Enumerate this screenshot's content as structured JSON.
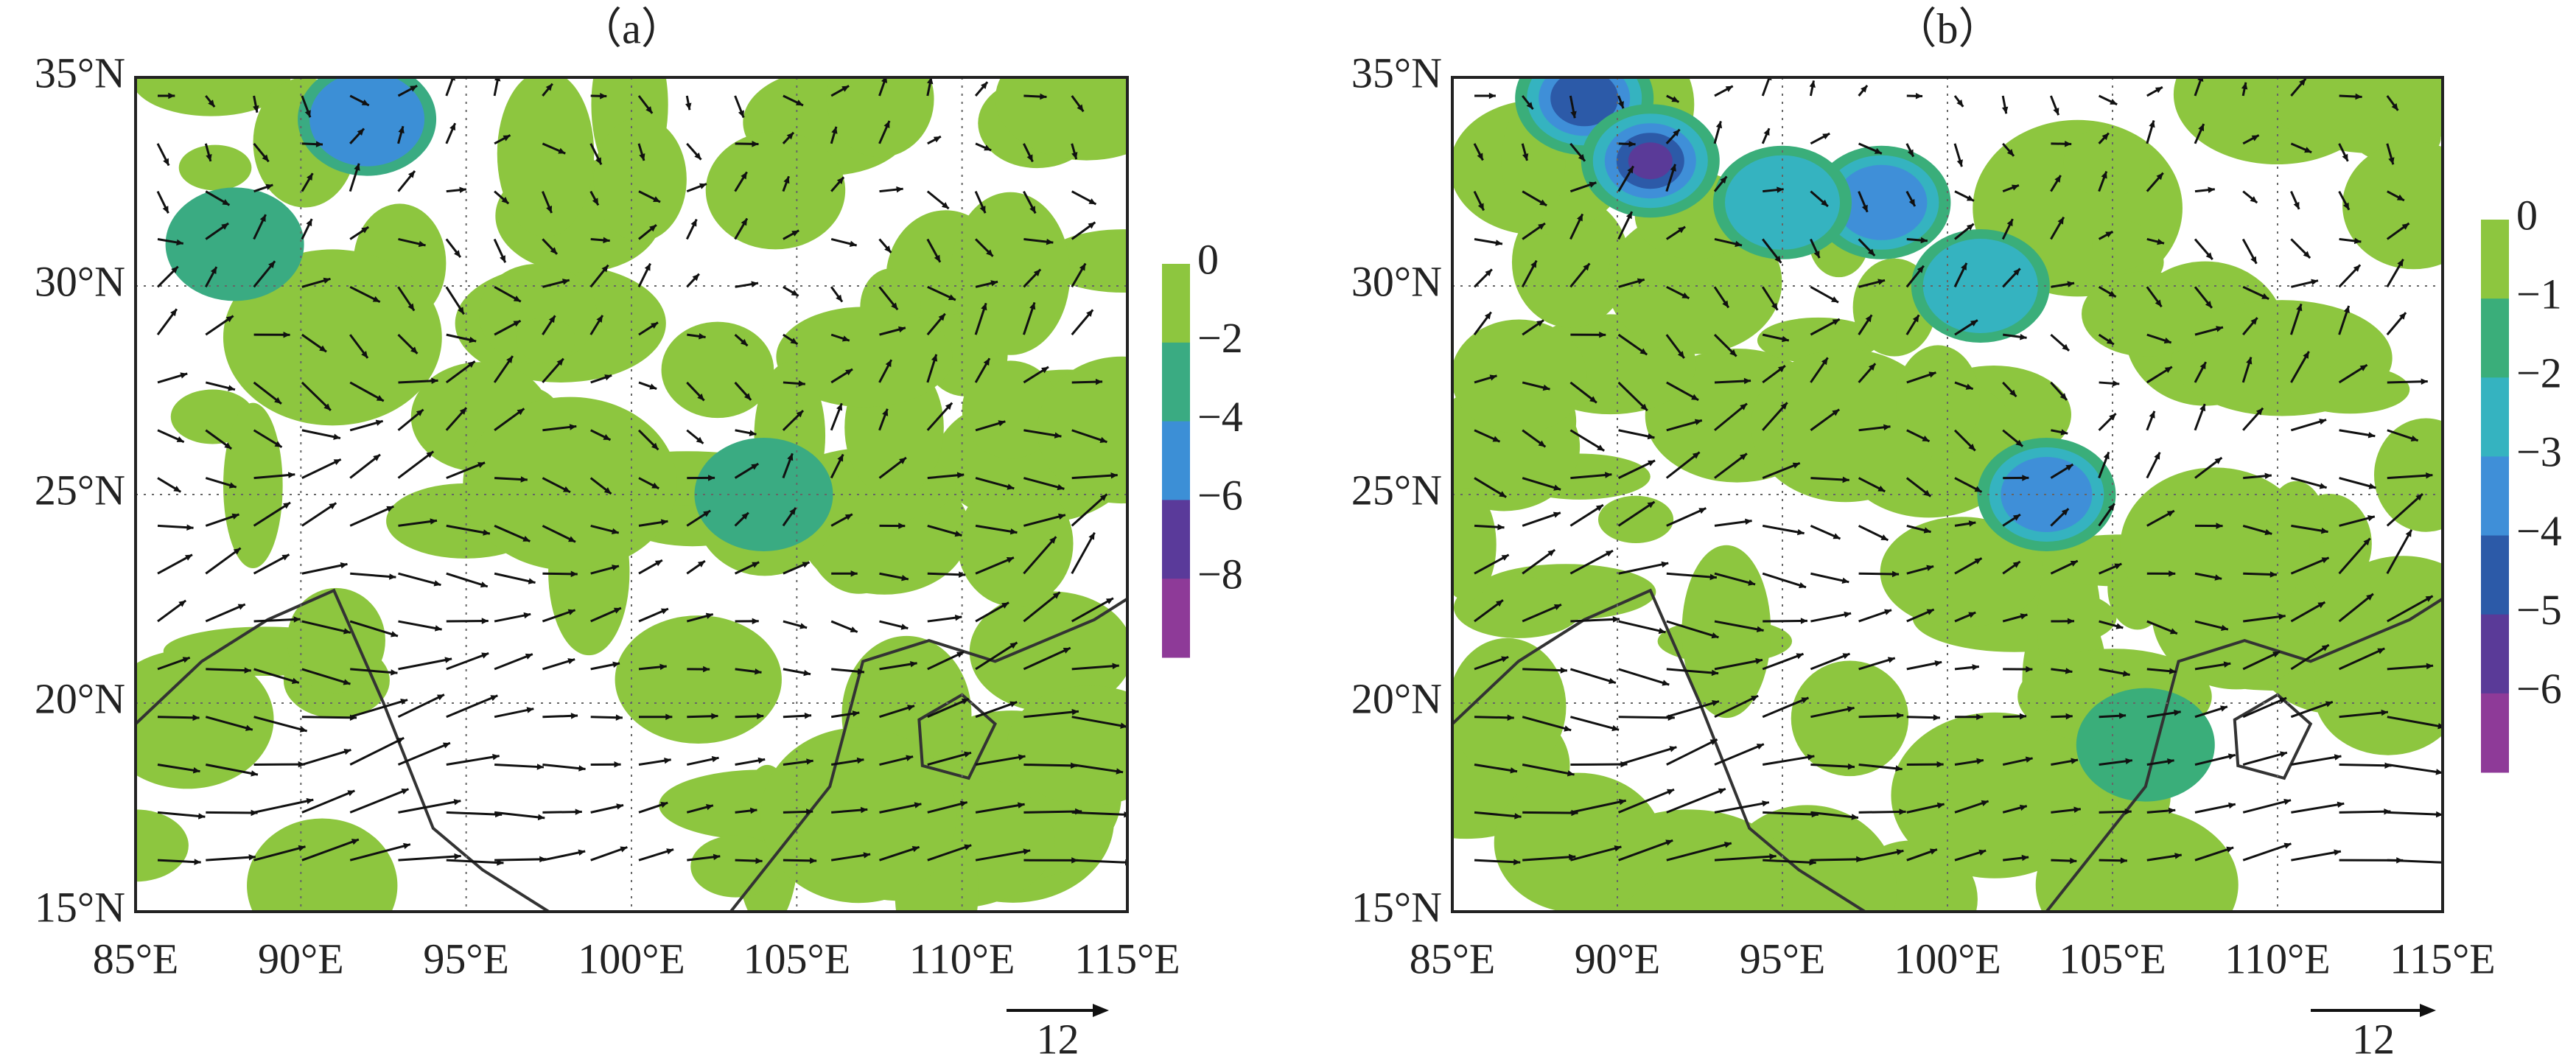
{
  "panels": [
    {
      "title": "（a）",
      "xticks": [
        {
          "value": 85,
          "label": "85°E"
        },
        {
          "value": 90,
          "label": "90°E"
        },
        {
          "value": 95,
          "label": "95°E"
        },
        {
          "value": 100,
          "label": "100°E"
        },
        {
          "value": 105,
          "label": "105°E"
        },
        {
          "value": 110,
          "label": "110°E"
        },
        {
          "value": 115,
          "label": "115°E"
        }
      ],
      "yticks": [
        {
          "value": 15,
          "label": "15°N"
        },
        {
          "value": 20,
          "label": "20°N"
        },
        {
          "value": 25,
          "label": "25°N"
        },
        {
          "value": 30,
          "label": "30°N"
        },
        {
          "value": 35,
          "label": "35°N"
        }
      ],
      "colorbar": {
        "ticks": [
          0,
          {
            "value": -2,
            "label": "−2"
          },
          {
            "value": -4,
            "label": "−4"
          },
          {
            "value": -6,
            "label": "−6"
          },
          {
            "value": -8,
            "label": "−8"
          }
        ],
        "colors": [
          "#8dc63f",
          "#3aab82",
          "#3c8fd6",
          "#5a3a9a",
          "#8e3a98"
        ]
      },
      "reference_vector": 12
    },
    {
      "title": "（b）",
      "xticks": [
        {
          "value": 85,
          "label": "85°E"
        },
        {
          "value": 90,
          "label": "90°E"
        },
        {
          "value": 95,
          "label": "95°E"
        },
        {
          "value": 100,
          "label": "100°E"
        },
        {
          "value": 105,
          "label": "105°E"
        },
        {
          "value": 110,
          "label": "110°E"
        },
        {
          "value": 115,
          "label": "115°E"
        }
      ],
      "yticks": [
        {
          "value": 15,
          "label": "15°N"
        },
        {
          "value": 20,
          "label": "20°N"
        },
        {
          "value": 25,
          "label": "25°N"
        },
        {
          "value": 30,
          "label": "30°N"
        },
        {
          "value": 35,
          "label": "35°N"
        }
      ],
      "colorbar": {
        "ticks": [
          0,
          {
            "value": -1,
            "label": "−1"
          },
          {
            "value": -2,
            "label": "−2"
          },
          {
            "value": -3,
            "label": "−3"
          },
          {
            "value": -4,
            "label": "−4"
          },
          {
            "value": -5,
            "label": "−5"
          },
          {
            "value": -6,
            "label": "−6"
          }
        ],
        "colors": [
          "#8dc63f",
          "#3aae7a",
          "#35b3c0",
          "#3f8fd8",
          "#2c5aa8",
          "#5a3a98",
          "#8e3a98"
        ]
      },
      "reference_vector": 12
    }
  ]
}
